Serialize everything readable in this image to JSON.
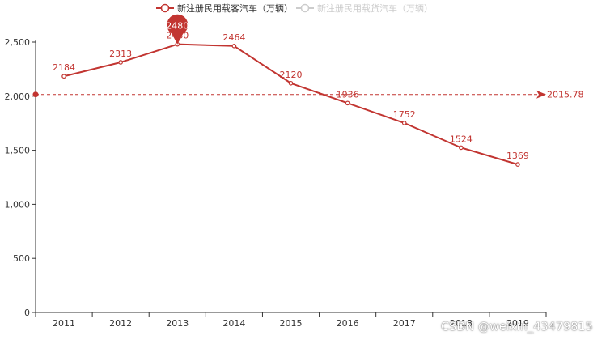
{
  "colors": {
    "series_active": "#c23531",
    "series_inactive": "#cccccc",
    "axis": "#333333"
  },
  "legend": [
    {
      "name": "新注册民用载客汽车（万辆）",
      "active": true
    },
    {
      "name": "新注册民用载货汽车（万辆）",
      "active": false
    }
  ],
  "watermark": "CSDN @weixin_43479815",
  "chart_data": {
    "type": "line",
    "categories": [
      "2011",
      "2012",
      "2013",
      "2014",
      "2015",
      "2016",
      "2017",
      "2018",
      "2019"
    ],
    "series": [
      {
        "name": "新注册民用载客汽车（万辆）",
        "values": [
          2184,
          2313,
          2480,
          2464,
          2120,
          1936,
          1752,
          1524,
          1369
        ]
      }
    ],
    "ylim": [
      0,
      2500
    ],
    "yticks": [
      0,
      500,
      1000,
      1500,
      2000,
      2500
    ],
    "ytick_labels": [
      "0",
      "500",
      "1,000",
      "1,500",
      "2,000",
      "2,500"
    ],
    "max_point": {
      "category": "2013",
      "value": 2480,
      "label": "2480"
    },
    "mark_line": {
      "type": "average",
      "value": 2015.78,
      "label": "2015.78"
    },
    "grid": false,
    "legend_position": "top-center"
  }
}
